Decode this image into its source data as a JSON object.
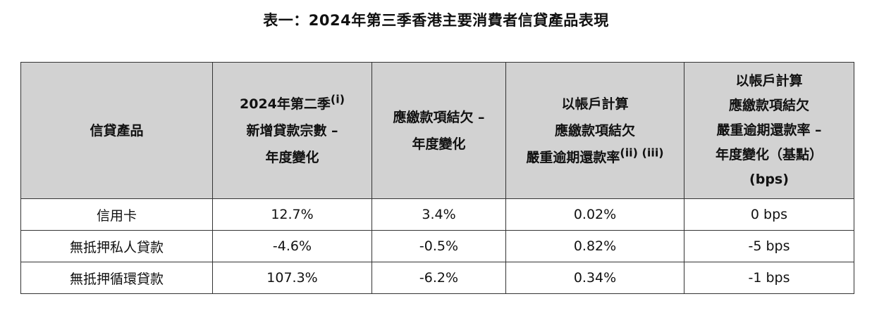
{
  "title": "表一：2024年第三季香港主要消費者信貸產品表現",
  "table": {
    "headers": {
      "product": "信貸產品",
      "col2": {
        "line1": "2024年第二季",
        "sup1": "(i)",
        "line2": "新增貸款宗數 –",
        "line3": "年度變化"
      },
      "col3": {
        "line1": "應繳款項結欠 –",
        "line2": "年度變化"
      },
      "col4": {
        "line1": "以帳戶計算",
        "line2": "應繳款項結欠",
        "line3": "嚴重逾期還款率",
        "sup3": "(ii) (iii)"
      },
      "col5": {
        "line1": "以帳戶計算",
        "line2": "應繳款項結欠",
        "line3": "嚴重逾期還款率 –",
        "line4": "年度變化（基點）",
        "line5": "(bps)"
      }
    },
    "rows": [
      {
        "product": "信用卡",
        "new_loans_yoy": "12.7%",
        "balance_yoy": "3.4%",
        "delinquency_rate": "0.02%",
        "delinquency_change": "0 bps"
      },
      {
        "product": "無抵押私人貸款",
        "new_loans_yoy": "-4.6%",
        "balance_yoy": "-0.5%",
        "delinquency_rate": "0.82%",
        "delinquency_change": "-5 bps"
      },
      {
        "product": "無抵押循環貸款",
        "new_loans_yoy": "107.3%",
        "balance_yoy": "-6.2%",
        "delinquency_rate": "0.34%",
        "delinquency_change": "-1 bps"
      }
    ]
  }
}
